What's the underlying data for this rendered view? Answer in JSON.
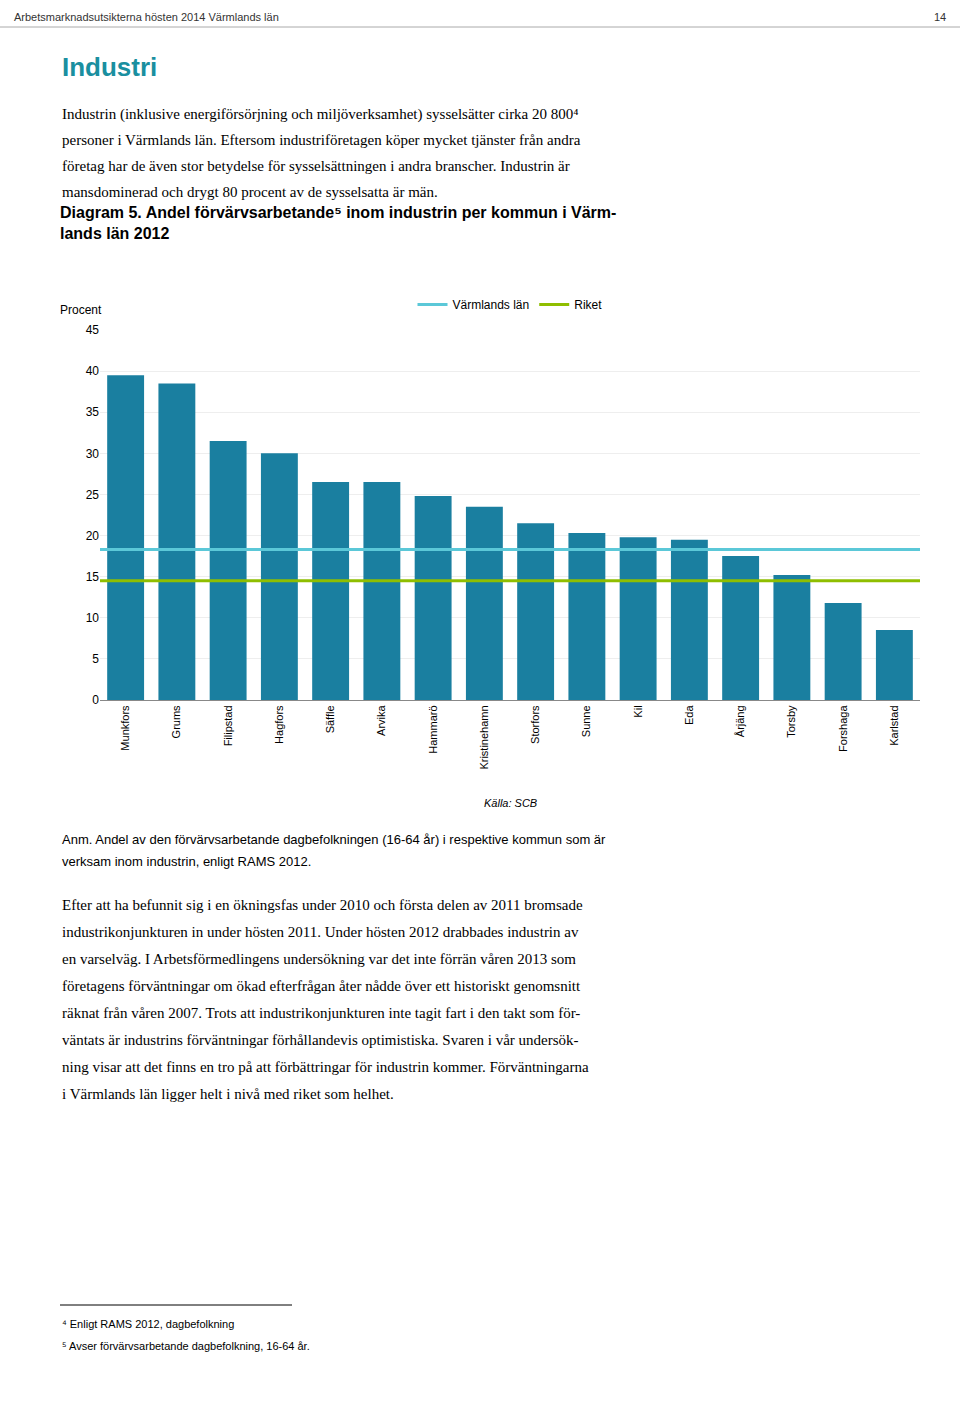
{
  "chart_data": {
    "type": "bar",
    "title": "Diagram 5. Andel förvärvsarbetande⁵ inom industrin per kommun i Värm-\nlands län 2012",
    "ylabel": "Procent",
    "categories": [
      "Munkfors",
      "Grums",
      "Filipstad",
      "Hagfors",
      "Säffle",
      "Arvika",
      "Hammarö",
      "Kristinehamn",
      "Storfors",
      "Sunne",
      "Kil",
      "Eda",
      "Årjäng",
      "Torsby",
      "Forshaga",
      "Karlstad"
    ],
    "values": [
      39.5,
      38.5,
      31.5,
      30.0,
      26.5,
      26.5,
      24.8,
      23.5,
      21.5,
      20.3,
      19.8,
      19.5,
      17.5,
      15.2,
      11.8,
      8.5
    ],
    "color": "#1a7fa0",
    "reference_lines": [
      {
        "name": "Värmlands län",
        "value": 18.3,
        "color": "#5bc8d8"
      },
      {
        "name": "Riket",
        "value": 14.5,
        "color": "#8fbe00"
      }
    ],
    "ylim": [
      0,
      45
    ],
    "yticks": [
      0,
      5,
      10,
      15,
      20,
      25,
      30,
      35,
      40,
      45
    ],
    "grid": true,
    "legend": "top",
    "annotations": [
      {
        "text": "Arbetsmarknadsutsikterna hösten 2014 Värmlands län"
      },
      {
        "text": "14"
      },
      {
        "text": "Industri",
        "color": "#1a8fa0"
      },
      {
        "text": "Industrin (inklusive energiförsörjning och miljöverksamhet) sysselsätter cirka 20 800⁴"
      },
      {
        "text": "personer i Värmlands län. Eftersom industriföretagen köper mycket tjänster från andra"
      },
      {
        "text": "företag har de även stor betydelse för sysselsättningen i andra branscher. Industrin är"
      },
      {
        "text": "mansdominerad och drygt 80 procent av de sysselsatta är män."
      },
      {
        "text": "Källa: SCB"
      },
      {
        "text": "Anm. Andel av den förvärvsarbetande dagbefolkningen (16-64 år) i respektive kommun som är"
      },
      {
        "text": "verksam inom industrin, enligt RAMS 2012."
      },
      {
        "text": "Efter att ha befunnit sig i en ökningsfas under 2010 och första delen av 2011 bromsade"
      },
      {
        "text": "industrikonjunkturen in under hösten 2011. Under hösten 2012 drabbades industrin av"
      },
      {
        "text": "en varselväg. I Arbetsförmedlingens undersökning var det inte förrän våren 2013 som"
      },
      {
        "text": "företagens förväntningar om ökad efterfrågan åter nådde över ett historiskt genomsnitt"
      },
      {
        "text": "räknat från våren 2007. Trots att industrikonjunkturen inte tagit fart i den takt som för-"
      },
      {
        "text": "väntats är industrins förväntningar förhållandevis optimistiska. Svaren i vår undersök-"
      },
      {
        "text": "ning visar att det finns en tro på att förbättringar för industrin kommer. Förväntningarna"
      },
      {
        "text": "i Värmlands län ligger helt i nivå med riket som helhet."
      },
      {
        "text": "⁴ Enligt RAMS 2012, dagbefolkning"
      },
      {
        "text": "⁵ Avser förvärvsarbetande dagbefolkning, 16-64 år."
      }
    ]
  }
}
